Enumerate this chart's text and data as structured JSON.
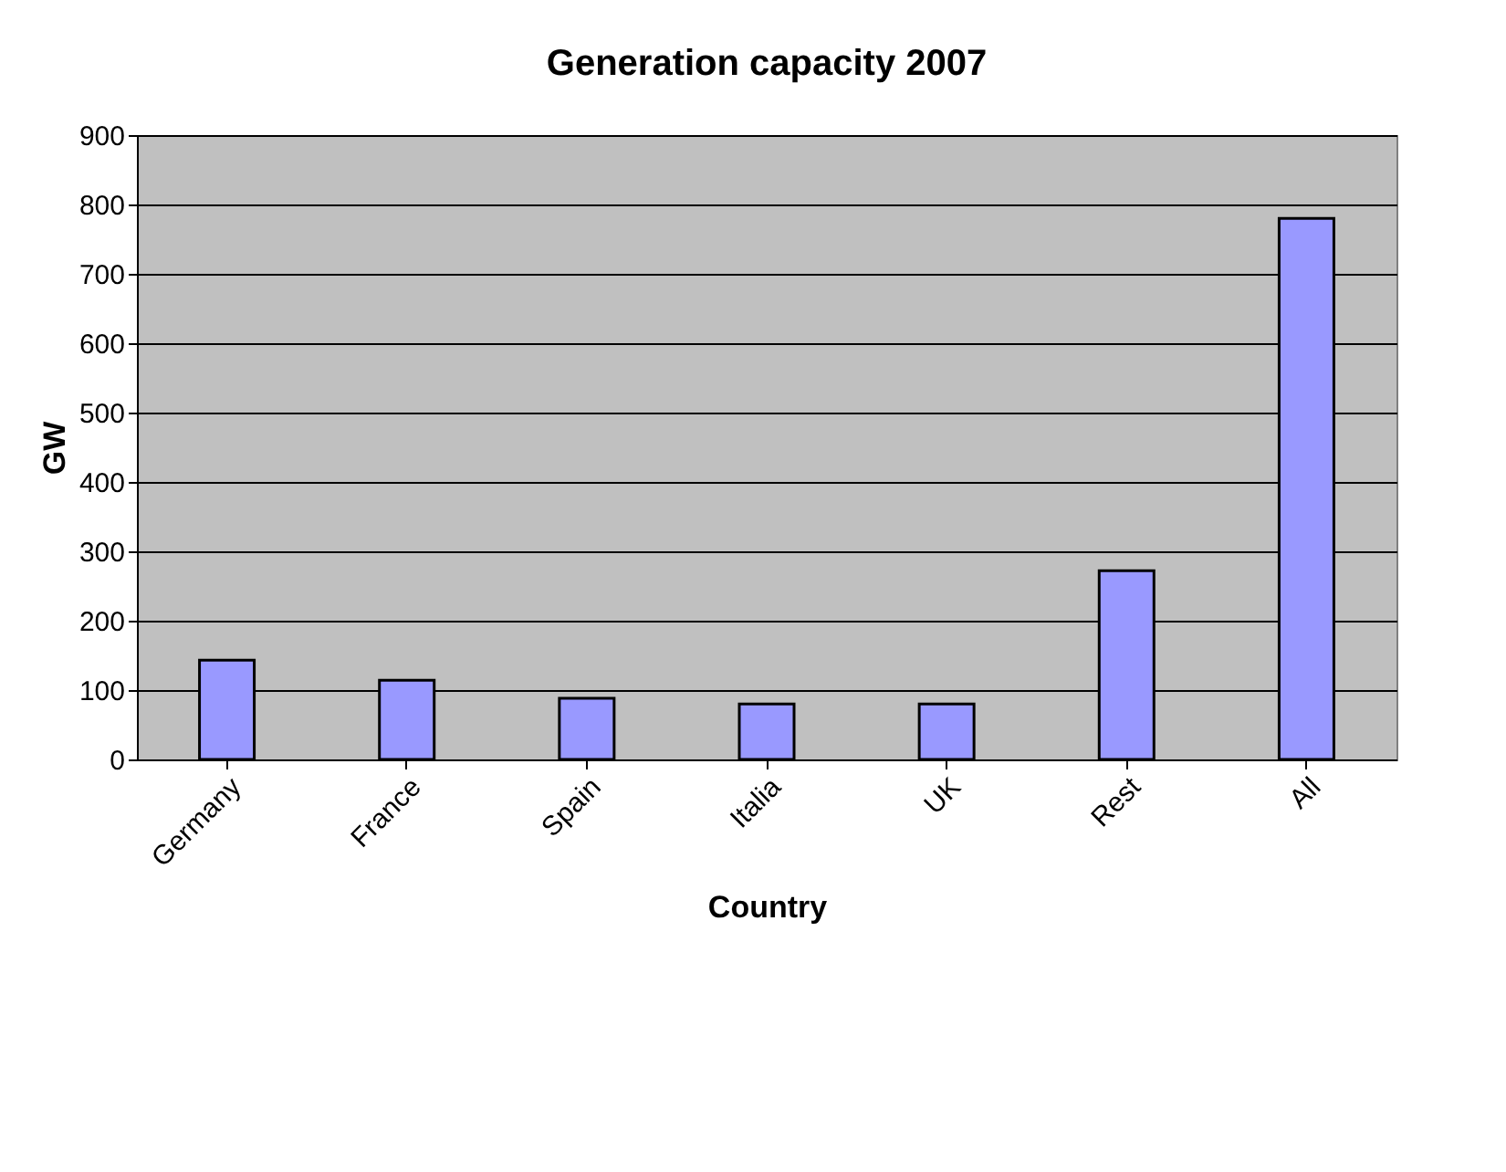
{
  "chart_data": {
    "type": "bar",
    "title": "Generation capacity 2007",
    "xlabel": "Country",
    "ylabel": "GW",
    "categories": [
      "Germany",
      "France",
      "Spain",
      "Italia",
      "UK",
      "Rest",
      "All"
    ],
    "values": [
      143,
      114,
      88,
      80,
      80,
      272,
      780
    ],
    "color": "#9999ff",
    "ylim": [
      0,
      900
    ],
    "yticks": [
      0,
      100,
      200,
      300,
      400,
      500,
      600,
      700,
      800,
      900
    ],
    "grid": "y"
  }
}
